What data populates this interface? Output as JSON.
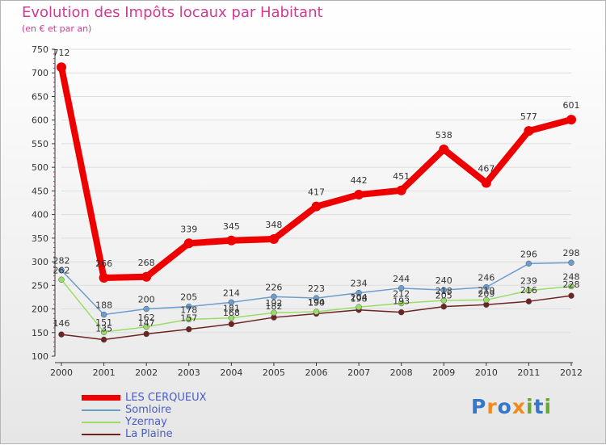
{
  "colors": {
    "title": "#d43a8f",
    "axis": "#333333",
    "grid": "#dddddd",
    "series": [
      "#ee0000",
      "#6a9ecf",
      "#99dd66",
      "#6e2323"
    ]
  },
  "logo": {
    "text": "Proxiti",
    "letter_colors": [
      "#3377cc",
      "#f08a1c",
      "#3377cc",
      "#f08a1c",
      "#66aa33",
      "#3377cc",
      "#66aa33"
    ]
  },
  "chart_data": {
    "type": "line",
    "title": "Evolution des Impôts locaux par Habitant",
    "subtitle": "(en € et par an)",
    "xlabel": "",
    "ylabel": "",
    "x": [
      "2000",
      "2001",
      "2002",
      "2003",
      "2004",
      "2005",
      "2006",
      "2007",
      "2008",
      "2009",
      "2010",
      "2011",
      "2012"
    ],
    "ylim": [
      100,
      750
    ],
    "yticks": [
      100,
      150,
      200,
      250,
      300,
      350,
      400,
      450,
      500,
      550,
      600,
      650,
      700,
      750
    ],
    "grid": true,
    "legend_position": "bottom-left",
    "series": [
      {
        "name": "LES CERQUEUX",
        "values": [
          712,
          266,
          268,
          339,
          345,
          348,
          417,
          442,
          451,
          538,
          467,
          577,
          601
        ]
      },
      {
        "name": "Somloire",
        "values": [
          282,
          188,
          200,
          205,
          214,
          226,
          223,
          234,
          244,
          240,
          246,
          296,
          298
        ]
      },
      {
        "name": "Yzernay",
        "values": [
          262,
          151,
          162,
          178,
          181,
          192,
          194,
          204,
          212,
          218,
          219,
          239,
          248
        ]
      },
      {
        "name": "La Plaine",
        "values": [
          146,
          135,
          147,
          157,
          168,
          182,
          190,
          198,
          193,
          205,
          209,
          216,
          228
        ]
      }
    ]
  }
}
